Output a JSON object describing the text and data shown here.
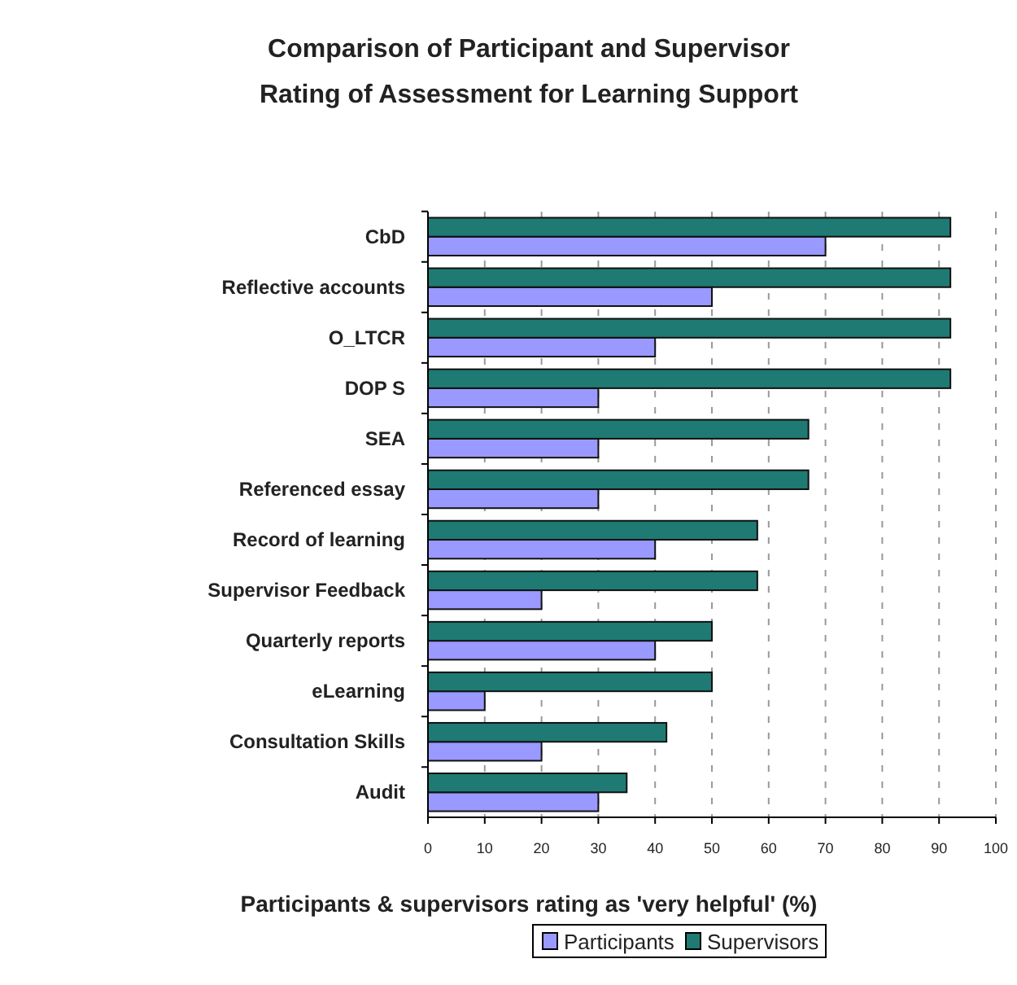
{
  "chart_data": {
    "type": "bar",
    "orientation": "horizontal",
    "title": "Comparison of Participant and Supervisor\nRating of Assessment for Learning Support",
    "xlabel": "Participants & supervisors rating as 'very helpful' (%)",
    "categories": [
      "CbD",
      "Reflective accounts",
      "O_LTCR",
      "DOP S",
      "SEA",
      "Referenced essay",
      "Record of learning",
      "Supervisor Feedback",
      "Quarterly reports",
      "eLearning",
      "Consultation Skills",
      "Audit"
    ],
    "series": [
      {
        "name": "Participants",
        "color": "#9999ff",
        "values": [
          70,
          50,
          40,
          30,
          30,
          30,
          40,
          20,
          40,
          10,
          20,
          30
        ]
      },
      {
        "name": "Supervisors",
        "color": "#1f7a73",
        "values": [
          92,
          92,
          92,
          92,
          67,
          67,
          58,
          58,
          50,
          50,
          42,
          35
        ]
      }
    ],
    "xlim": [
      0,
      100
    ],
    "xticks": [
      0,
      10,
      20,
      30,
      40,
      50,
      60,
      70,
      80,
      90,
      100
    ],
    "grid": "x",
    "legend": "bottom"
  }
}
